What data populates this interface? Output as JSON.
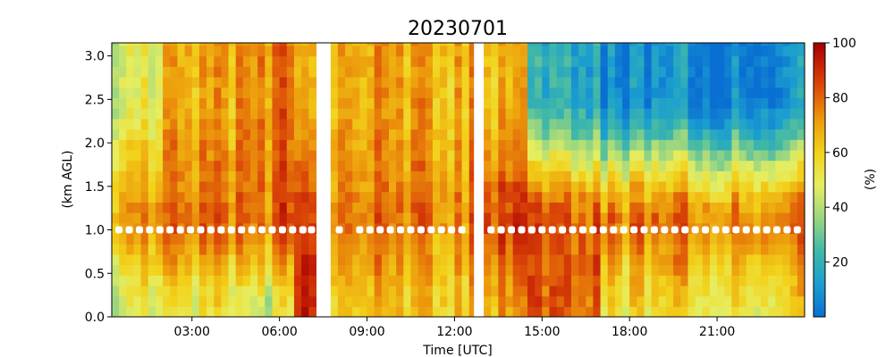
{
  "chart_data": {
    "type": "heatmap",
    "title": "20230701",
    "xlabel": "Time [UTC]",
    "ylabel": "(km AGL)",
    "colorbar_label": "(%)",
    "xlim_hours": [
      0.25,
      24
    ],
    "ylim": [
      0,
      3.15
    ],
    "clim": [
      0,
      100
    ],
    "x_ticks": [
      "03:00",
      "06:00",
      "09:00",
      "12:00",
      "15:00",
      "18:00",
      "21:00"
    ],
    "x_tick_hours": [
      3,
      6,
      9,
      12,
      15,
      18,
      21
    ],
    "y_ticks": [
      "0.0",
      "0.5",
      "1.0",
      "1.5",
      "2.0",
      "2.5",
      "3.0"
    ],
    "y_tick_values": [
      0,
      0.5,
      1.0,
      1.5,
      2.0,
      2.5,
      3.0
    ],
    "colorbar_ticks": [
      "20",
      "40",
      "60",
      "80",
      "100"
    ],
    "colorbar_tick_values": [
      20,
      40,
      60,
      80,
      100
    ],
    "colormap": "jet-like (blue-cyan-green-yellow-orange-red-darkred)",
    "gaps_utc": [
      [
        "07:20",
        "07:45"
      ],
      [
        "12:40",
        "13:00"
      ]
    ],
    "marker_height_km": 1.0,
    "marker_color": "#ffffff",
    "marker_times_hours": [
      0.5,
      0.85,
      1.2,
      1.55,
      1.9,
      2.25,
      2.6,
      2.95,
      3.3,
      3.65,
      4.0,
      4.35,
      4.7,
      5.05,
      5.4,
      5.75,
      6.1,
      6.45,
      6.8,
      7.1,
      8.05,
      8.75,
      9.1,
      9.45,
      9.8,
      10.15,
      10.5,
      10.85,
      11.2,
      11.55,
      11.9,
      12.25,
      13.25,
      13.6,
      13.95,
      14.3,
      14.65,
      15.0,
      15.35,
      15.7,
      16.05,
      16.4,
      16.75,
      17.1,
      17.45,
      17.8,
      18.15,
      18.5,
      18.85,
      19.2,
      19.55,
      19.9,
      20.25,
      20.6,
      20.95,
      21.3,
      21.65,
      22.0,
      22.35,
      22.7,
      23.05,
      23.4,
      23.75
    ],
    "profiles_description": "relative humidity (%) by time and height; warm (60-90%) most of day, drying to 5-30% above ~2 km after 15 UTC",
    "regimes": [
      {
        "t": [
          0.25,
          2.0
        ],
        "rh_low": 45,
        "rh_1km": 72,
        "rh_top": 48
      },
      {
        "t": [
          2.0,
          4.5
        ],
        "rh_low": 48,
        "rh_1km": 75,
        "rh_top": 65
      },
      {
        "t": [
          4.5,
          6.5
        ],
        "rh_low": 45,
        "rh_1km": 80,
        "rh_top": 75
      },
      {
        "t": [
          6.5,
          7.3
        ],
        "rh_low": 85,
        "rh_1km": 80,
        "rh_top": 60
      },
      {
        "t": [
          7.75,
          12.65
        ],
        "rh_low": 62,
        "rh_1km": 75,
        "rh_top": 68
      },
      {
        "t": [
          13.0,
          14.5
        ],
        "rh_low": 65,
        "rh_1km": 82,
        "rh_top": 62
      },
      {
        "t": [
          14.5,
          17.0
        ],
        "rh_low": 82,
        "rh_1km": 85,
        "rh_top": 20
      },
      {
        "t": [
          17.0,
          24.0
        ],
        "rh_low": 55,
        "rh_1km": 78,
        "rh_top": 8
      }
    ]
  }
}
